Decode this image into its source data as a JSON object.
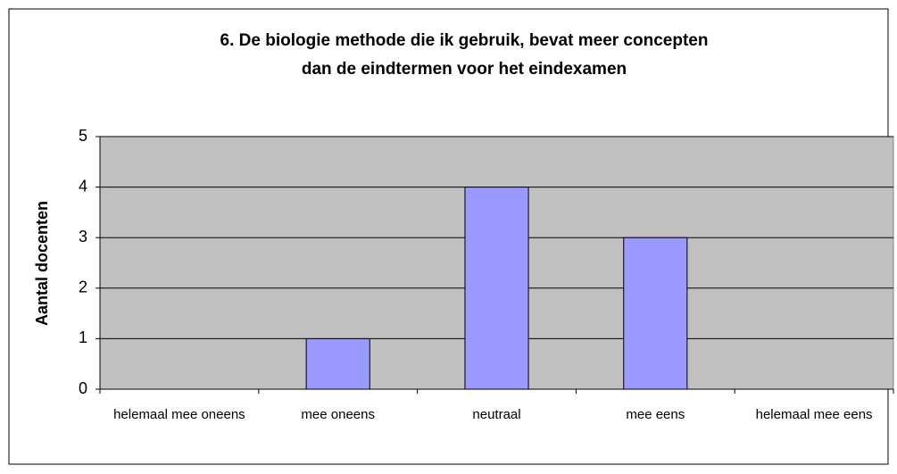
{
  "chart_data": {
    "type": "bar",
    "title": [
      "6. De biologie methode die ik gebruik, bevat meer concepten",
      "dan de eindtermen voor het eindexamen"
    ],
    "y_label": "Aantal docenten",
    "categories": [
      "helemaal mee oneens",
      "mee oneens",
      "neutraal",
      "mee eens",
      "helemaal mee eens"
    ],
    "values": [
      0,
      1,
      4,
      3,
      0
    ],
    "color": "#9999ff",
    "ylim": [
      0,
      5
    ],
    "yticks": [
      0,
      1,
      2,
      3,
      4,
      5
    ],
    "grid": true
  }
}
